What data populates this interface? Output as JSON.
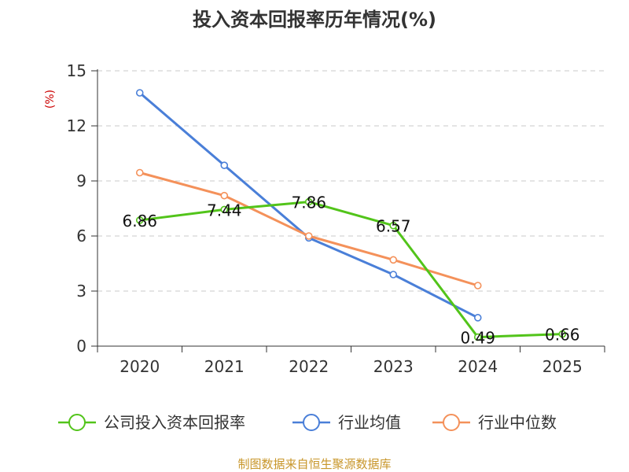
{
  "chart_data": {
    "type": "line",
    "title": "投入资本回报率历年情况(%)",
    "ylabel": "(%)",
    "xlabel": "",
    "categories": [
      "2020",
      "2021",
      "2022",
      "2023",
      "2024",
      "2025"
    ],
    "ylim": [
      0,
      15
    ],
    "yticks": [
      0,
      3,
      6,
      9,
      12,
      15
    ],
    "grid": true,
    "legend_position": "bottom",
    "series": [
      {
        "name": "公司投入资本回报率",
        "color": "#52c41a",
        "values": [
          6.86,
          7.44,
          7.86,
          6.57,
          0.49,
          0.66
        ],
        "labels": [
          "6.86",
          "7.44",
          "7.86",
          "6.57",
          "0.49",
          "0.66"
        ]
      },
      {
        "name": "行业均值",
        "color": "#4a7fd8",
        "values": [
          13.8,
          9.85,
          5.9,
          3.9,
          1.55,
          null
        ]
      },
      {
        "name": "行业中位数",
        "color": "#f4915a",
        "values": [
          9.45,
          8.2,
          6.0,
          4.7,
          3.3,
          null
        ]
      }
    ],
    "source": "制图数据来自恒生聚源数据库"
  }
}
